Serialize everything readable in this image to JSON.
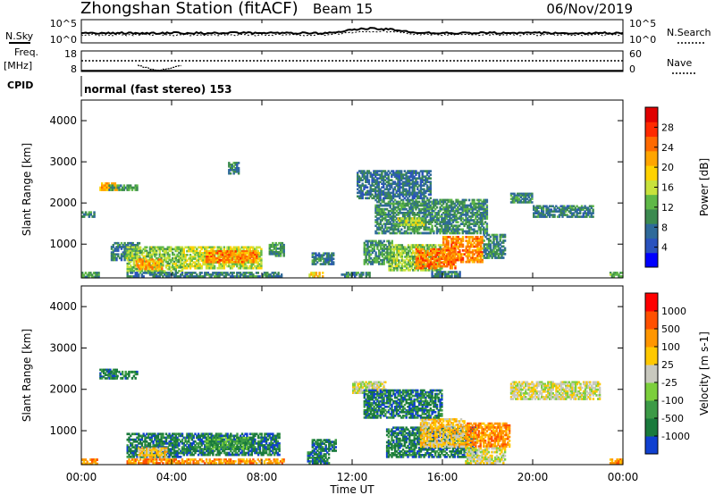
{
  "header": {
    "station": "Zhongshan Station (fitACF)",
    "beam": "Beam 15",
    "date": "06/Nov/2019"
  },
  "noise_panel": {
    "left_label": "N.Sky",
    "right_label": "N.Search",
    "ticks": [
      "10^5",
      "10^0"
    ],
    "right_ticks": [
      "10^5",
      "10^0"
    ]
  },
  "freq_panel": {
    "left_label_line1": "Freq.",
    "left_label_line2": "[MHz]",
    "left_ticks": [
      "18",
      "8"
    ],
    "right_label": "Nave",
    "right_ticks": [
      "60",
      "0"
    ]
  },
  "cpid_panel": {
    "label": "CPID",
    "program": "normal (fast stereo) 153"
  },
  "x_axis": {
    "label": "Time UT",
    "ticks": [
      "00:00",
      "04:00",
      "08:00",
      "12:00",
      "16:00",
      "20:00",
      "00:00"
    ]
  },
  "chart_data": [
    {
      "type": "heatmap",
      "title": "Power",
      "xlabel": "Time UT",
      "ylabel": "Slant Range [km]",
      "xlim": [
        0,
        24
      ],
      "ylim": [
        180,
        4500
      ],
      "y_ticks": [
        "1000",
        "2000",
        "3000",
        "4000"
      ],
      "colorbar": {
        "label": "Power [dB]",
        "range": [
          0,
          32
        ],
        "ticks": [
          "4",
          "8",
          "12",
          "16",
          "20",
          "24",
          "28"
        ],
        "colors": [
          "#0000ff",
          "#2a52be",
          "#2f6a9a",
          "#3c8a50",
          "#5fb847",
          "#c8e23c",
          "#ffd200",
          "#ffa500",
          "#ff6a00",
          "#ff2a00",
          "#e00000"
        ]
      },
      "regions": [
        {
          "t": [
            0.0,
            0.8
          ],
          "r": [
            180,
            330
          ],
          "v": 10
        },
        {
          "t": [
            0.8,
            1.6
          ],
          "r": [
            2300,
            2500
          ],
          "v": 22
        },
        {
          "t": [
            1.2,
            2.5
          ],
          "r": [
            2300,
            2450
          ],
          "v": 10
        },
        {
          "t": [
            0.0,
            0.6
          ],
          "r": [
            1650,
            1800
          ],
          "v": 9
        },
        {
          "t": [
            1.3,
            2.6
          ],
          "r": [
            600,
            1050
          ],
          "v": 8
        },
        {
          "t": [
            2.0,
            4.5
          ],
          "r": [
            330,
            950
          ],
          "v": 14
        },
        {
          "t": [
            2.4,
            3.6
          ],
          "r": [
            380,
            650
          ],
          "v": 22
        },
        {
          "t": [
            4.5,
            8.0
          ],
          "r": [
            400,
            950
          ],
          "v": 16
        },
        {
          "t": [
            5.5,
            7.8
          ],
          "r": [
            550,
            850
          ],
          "v": 24
        },
        {
          "t": [
            2.0,
            8.0
          ],
          "r": [
            200,
            330
          ],
          "v": 8
        },
        {
          "t": [
            8.0,
            8.9
          ],
          "r": [
            200,
            330
          ],
          "v": 8
        },
        {
          "t": [
            8.3,
            9.0
          ],
          "r": [
            700,
            1050
          ],
          "v": 10
        },
        {
          "t": [
            10.2,
            11.2
          ],
          "r": [
            500,
            800
          ],
          "v": 8
        },
        {
          "t": [
            10.0,
            10.8
          ],
          "r": [
            200,
            330
          ],
          "v": 20
        },
        {
          "t": [
            11.5,
            12.8
          ],
          "r": [
            200,
            330
          ],
          "v": 8
        },
        {
          "t": [
            12.5,
            13.8
          ],
          "r": [
            500,
            1100
          ],
          "v": 10
        },
        {
          "t": [
            13.6,
            16.0
          ],
          "r": [
            350,
            1000
          ],
          "v": 14
        },
        {
          "t": [
            14.8,
            16.6
          ],
          "r": [
            400,
            900
          ],
          "v": 25
        },
        {
          "t": [
            16.0,
            17.8
          ],
          "r": [
            550,
            1200
          ],
          "v": 24
        },
        {
          "t": [
            17.8,
            18.8
          ],
          "r": [
            650,
            1250
          ],
          "v": 9
        },
        {
          "t": [
            13.0,
            18.0
          ],
          "r": [
            1250,
            2100
          ],
          "v": 9
        },
        {
          "t": [
            14.0,
            15.2
          ],
          "r": [
            1450,
            1650
          ],
          "v": 15
        },
        {
          "t": [
            12.2,
            15.5
          ],
          "r": [
            2100,
            2800
          ],
          "v": 7
        },
        {
          "t": [
            15.5,
            16.8
          ],
          "r": [
            200,
            350
          ],
          "v": 8
        },
        {
          "t": [
            19.0,
            20.0
          ],
          "r": [
            2000,
            2250
          ],
          "v": 9
        },
        {
          "t": [
            20.0,
            22.7
          ],
          "r": [
            1650,
            1950
          ],
          "v": 8
        },
        {
          "t": [
            23.4,
            24.0
          ],
          "r": [
            200,
            330
          ],
          "v": 12
        },
        {
          "t": [
            6.5,
            7.0
          ],
          "r": [
            2700,
            3000
          ],
          "v": 8
        }
      ]
    },
    {
      "type": "heatmap",
      "title": "Velocity",
      "xlabel": "Time UT",
      "ylabel": "Slant Range [km]",
      "xlim": [
        0,
        24
      ],
      "ylim": [
        180,
        4500
      ],
      "y_ticks": [
        "1000",
        "2000",
        "3000",
        "4000"
      ],
      "colorbar": {
        "label": "Velocity [m s-1]",
        "ticks": [
          "1000",
          "500",
          "100",
          "25",
          "-25",
          "-100",
          "-500",
          "-1000"
        ],
        "colors": [
          "#1040d0",
          "#1a7a3c",
          "#3c9a46",
          "#7ccf3c",
          "#c8c8be",
          "#ffc800",
          "#ff9600",
          "#ff5000",
          "#ff0000"
        ]
      },
      "regions": [
        {
          "t": [
            0.0,
            0.8
          ],
          "r": [
            180,
            330
          ],
          "v": 2
        },
        {
          "t": [
            0.8,
            1.6
          ],
          "r": [
            2250,
            2500
          ],
          "v": -3
        },
        {
          "t": [
            1.2,
            2.5
          ],
          "r": [
            2250,
            2450
          ],
          "v": -3
        },
        {
          "t": [
            2.0,
            4.5
          ],
          "r": [
            350,
            950
          ],
          "v": -3
        },
        {
          "t": [
            2.5,
            3.8
          ],
          "r": [
            350,
            600
          ],
          "v": 1
        },
        {
          "t": [
            4.5,
            8.8
          ],
          "r": [
            400,
            950
          ],
          "v": -3
        },
        {
          "t": [
            5.5,
            7.5
          ],
          "r": [
            550,
            850
          ],
          "v": -2
        },
        {
          "t": [
            2.0,
            8.0
          ],
          "r": [
            200,
            330
          ],
          "v": 2
        },
        {
          "t": [
            8.0,
            9.0
          ],
          "r": [
            200,
            330
          ],
          "v": 2
        },
        {
          "t": [
            10.0,
            11.0
          ],
          "r": [
            200,
            500
          ],
          "v": -3
        },
        {
          "t": [
            10.2,
            11.3
          ],
          "r": [
            500,
            800
          ],
          "v": -3
        },
        {
          "t": [
            12.0,
            13.5
          ],
          "r": [
            1900,
            2200
          ],
          "v": 0
        },
        {
          "t": [
            13.5,
            17.5
          ],
          "r": [
            350,
            1100
          ],
          "v": -3
        },
        {
          "t": [
            15.0,
            17.0
          ],
          "r": [
            600,
            1300
          ],
          "v": 1
        },
        {
          "t": [
            17.0,
            19.0
          ],
          "r": [
            600,
            1200
          ],
          "v": 2
        },
        {
          "t": [
            17.0,
            18.8
          ],
          "r": [
            200,
            600
          ],
          "v": 0
        },
        {
          "t": [
            12.5,
            16.0
          ],
          "r": [
            1300,
            2000
          ],
          "v": -3
        },
        {
          "t": [
            19.0,
            23.0
          ],
          "r": [
            1750,
            2200
          ],
          "v": 0
        },
        {
          "t": [
            23.4,
            24.0
          ],
          "r": [
            200,
            330
          ],
          "v": 2
        }
      ]
    }
  ],
  "colors": {
    "axis": "#000000",
    "background": "#ffffff"
  }
}
